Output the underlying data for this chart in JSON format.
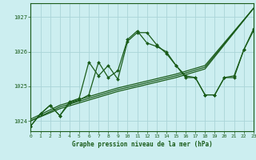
{
  "title": "Graphe pression niveau de la mer (hPa)",
  "background_color": "#cceef0",
  "grid_color": "#aad4d8",
  "line_color": "#1a5c1a",
  "xlim": [
    0,
    23
  ],
  "ylim": [
    1023.7,
    1027.4
  ],
  "yticks": [
    1024,
    1025,
    1026,
    1027
  ],
  "xticks": [
    0,
    1,
    2,
    3,
    4,
    5,
    6,
    7,
    8,
    9,
    10,
    11,
    12,
    13,
    14,
    15,
    16,
    17,
    18,
    19,
    20,
    21,
    22,
    23
  ],
  "series": [
    {
      "x": [
        0,
        3,
        6,
        9,
        12,
        15,
        18,
        23
      ],
      "y": [
        1024.0,
        1024.35,
        1024.6,
        1024.85,
        1025.05,
        1025.25,
        1025.5,
        1027.25
      ],
      "marker": false,
      "linewidth": 0.9
    },
    {
      "x": [
        0,
        3,
        6,
        9,
        12,
        15,
        18,
        23
      ],
      "y": [
        1024.0,
        1024.4,
        1024.65,
        1024.9,
        1025.1,
        1025.3,
        1025.55,
        1027.25
      ],
      "marker": false,
      "linewidth": 0.9
    },
    {
      "x": [
        0,
        3,
        6,
        9,
        12,
        15,
        18,
        23
      ],
      "y": [
        1024.05,
        1024.45,
        1024.7,
        1024.95,
        1025.15,
        1025.35,
        1025.6,
        1027.25
      ],
      "marker": false,
      "linewidth": 0.9
    },
    {
      "x": [
        0,
        1,
        2,
        3,
        4,
        5,
        6,
        7,
        8,
        9,
        10,
        11,
        12,
        13,
        14,
        15,
        16,
        17,
        18,
        19,
        20,
        21,
        22,
        23
      ],
      "y": [
        1023.85,
        1024.2,
        1024.45,
        1024.15,
        1024.55,
        1024.65,
        1025.7,
        1025.3,
        1025.6,
        1025.2,
        1026.3,
        1026.55,
        1026.55,
        1026.2,
        1025.95,
        1025.6,
        1025.25,
        1025.25,
        1024.75,
        1024.75,
        1025.25,
        1025.25,
        1026.05,
        1026.6
      ],
      "marker": true,
      "linewidth": 0.9
    },
    {
      "x": [
        0,
        1,
        2,
        3,
        4,
        5,
        6,
        7,
        8,
        9,
        10,
        11,
        12,
        13,
        14,
        15,
        16,
        17,
        18,
        19,
        20,
        21,
        22,
        23
      ],
      "y": [
        1023.85,
        1024.2,
        1024.45,
        1024.15,
        1024.5,
        1024.6,
        1024.75,
        1025.7,
        1025.25,
        1025.45,
        1026.35,
        1026.6,
        1026.25,
        1026.15,
        1026.0,
        1025.6,
        1025.3,
        1025.25,
        1024.75,
        1024.75,
        1025.25,
        1025.3,
        1026.05,
        1026.65
      ],
      "marker": true,
      "linewidth": 0.9
    }
  ]
}
